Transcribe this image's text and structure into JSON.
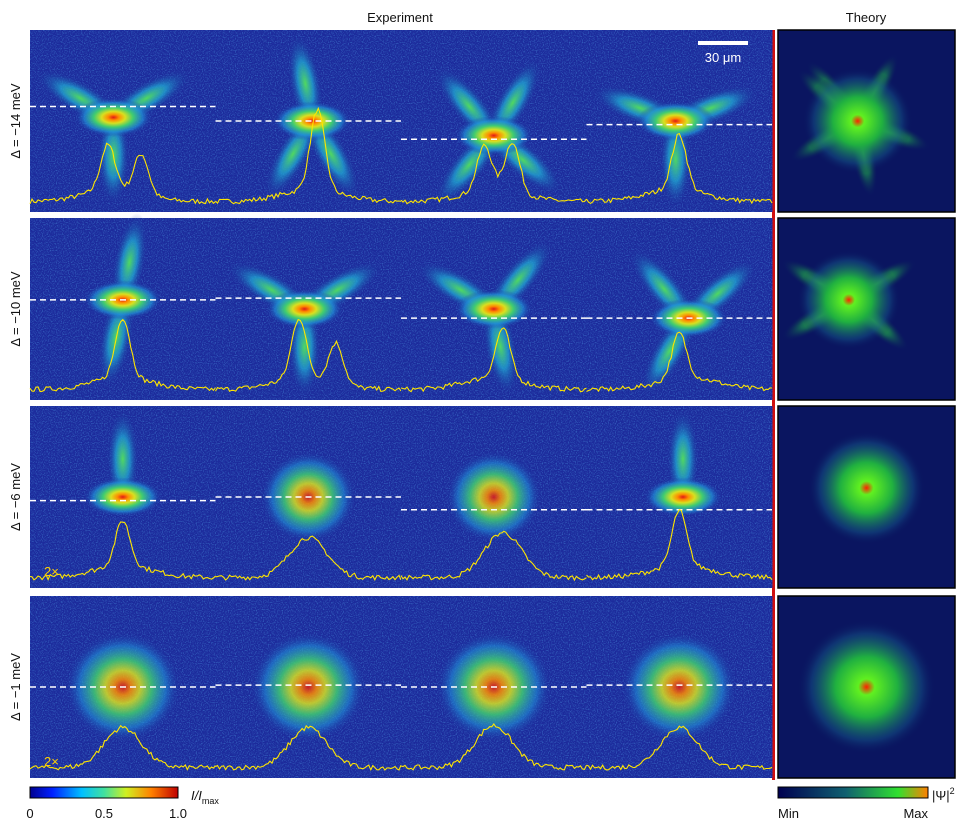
{
  "header": {
    "experiment": "Experiment",
    "theory": "Theory"
  },
  "rows": [
    {
      "label": "Δ = −14 meV"
    },
    {
      "label": "Δ = −10 meV"
    },
    {
      "label": "Δ = −6 meV",
      "gain": "2×"
    },
    {
      "label": "Δ = −1 meV",
      "gain": "2×"
    }
  ],
  "scale_bar": "30 μm",
  "colorbar_experiment": {
    "label": "I/I",
    "label_sub": "max",
    "ticks": [
      "0",
      "0.5",
      "1.0"
    ]
  },
  "colorbar_theory": {
    "min": "Min",
    "max": "Max",
    "label": "|Ψ|",
    "label_sup": "2"
  }
}
